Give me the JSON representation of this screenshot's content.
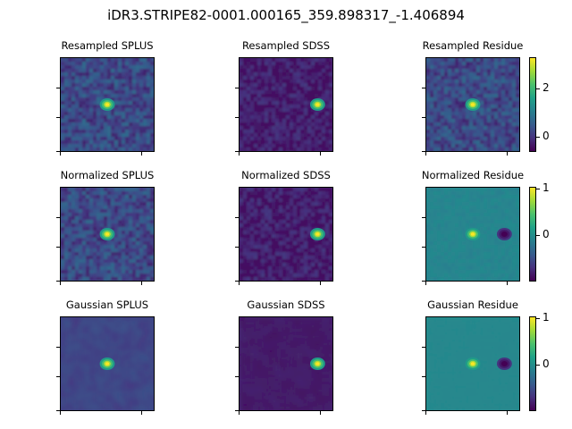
{
  "figure": {
    "suptitle": "iDR3.STRIPE82-0001.000165_359.898317_-1.406894"
  },
  "chart_data": {
    "type": "heatmap",
    "colormap": "viridis",
    "panels": [
      {
        "title": "Resampled SPLUS",
        "kind": "spot",
        "background": "#3a4c8a",
        "noise": 0.35,
        "blur": 1,
        "source": {
          "x": 0.5,
          "y": 0.5,
          "strength": 1.0
        }
      },
      {
        "title": "Resampled SDSS",
        "kind": "spot",
        "background": "#462a79",
        "noise": 0.25,
        "blur": 1,
        "source": {
          "x": 0.84,
          "y": 0.5,
          "strength": 0.95
        }
      },
      {
        "title": "Resampled Residue",
        "kind": "spot",
        "background": "#3d4a89",
        "noise": 0.35,
        "blur": 1,
        "source": {
          "x": 0.5,
          "y": 0.5,
          "strength": 1.0
        },
        "colorbar": {
          "ticks": [
            "2",
            "0"
          ]
        }
      },
      {
        "title": "Normalized SPLUS",
        "kind": "spot",
        "background": "#3f4788",
        "noise": 0.35,
        "blur": 1,
        "source": {
          "x": 0.5,
          "y": 0.5,
          "strength": 1.0
        }
      },
      {
        "title": "Normalized SDSS",
        "kind": "spot",
        "background": "#472d7b",
        "noise": 0.25,
        "blur": 1,
        "source": {
          "x": 0.84,
          "y": 0.5,
          "strength": 0.95
        }
      },
      {
        "title": "Normalized Residue",
        "kind": "dipole",
        "background": "#24878e",
        "noise": 0.05,
        "blur": 1,
        "source": {
          "x": 0.5,
          "y": 0.5,
          "strength": 1.0
        },
        "sink": {
          "x": 0.84,
          "y": 0.5
        },
        "colorbar": {
          "ticks": [
            "1",
            "0"
          ]
        }
      },
      {
        "title": "Gaussian SPLUS",
        "kind": "spot",
        "background": "#433d84",
        "noise": 0.15,
        "blur": 3,
        "source": {
          "x": 0.5,
          "y": 0.5,
          "strength": 1.0
        }
      },
      {
        "title": "Gaussian SDSS",
        "kind": "spot",
        "background": "#46266f",
        "noise": 0.1,
        "blur": 3,
        "source": {
          "x": 0.84,
          "y": 0.5,
          "strength": 0.95
        }
      },
      {
        "title": "Gaussian Residue",
        "kind": "dipole",
        "background": "#22908c",
        "noise": 0.02,
        "blur": 3,
        "source": {
          "x": 0.5,
          "y": 0.5,
          "strength": 1.0
        },
        "sink": {
          "x": 0.84,
          "y": 0.5
        },
        "colorbar": {
          "ticks": [
            "1",
            "0"
          ]
        }
      }
    ]
  }
}
